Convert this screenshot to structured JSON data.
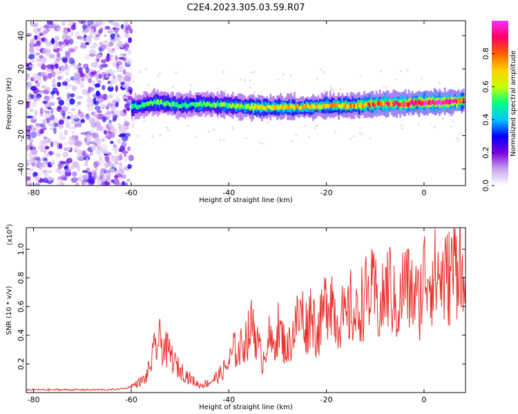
{
  "title": "C2E4.2023.305.03.59.R07",
  "chart_data": [
    {
      "type": "heatmap",
      "xlabel": "Height of straight line (km)",
      "ylabel": "Frequency (Hz)",
      "xlim": [
        -81.5,
        8.5
      ],
      "ylim": [
        -50,
        49
      ],
      "x_ticks": [
        -80,
        -60,
        -40,
        -20,
        0
      ],
      "y_ticks": [
        -40,
        -20,
        0,
        20,
        40
      ],
      "colorbar": {
        "label": "Normalized spectral amplitude",
        "range": [
          0,
          1
        ],
        "ticks": [
          0.0,
          0.2,
          0.4,
          0.6,
          0.8
        ],
        "colormap": [
          "#ffffff",
          "#c9a6ef",
          "#7a00e0",
          "#0000ff",
          "#00c8ff",
          "#00ff80",
          "#c8ff00",
          "#ffd000",
          "#ff6000",
          "#ff0060",
          "#ff30ff"
        ]
      },
      "noise_region_x": [
        -81.5,
        -60
      ],
      "signal_ridge": {
        "x": [
          -60,
          -55,
          -50,
          -45,
          -40,
          -35,
          -30,
          -25,
          -20,
          -15,
          -10,
          -5,
          0,
          5,
          8
        ],
        "frequency": [
          -3,
          0,
          -2,
          -1,
          -2,
          -3,
          -3,
          -3,
          -2,
          -2,
          -1,
          -1,
          0,
          0,
          1
        ],
        "peak_amplitude": [
          0.35,
          0.45,
          0.4,
          0.42,
          0.45,
          0.55,
          0.6,
          0.6,
          0.6,
          0.65,
          0.75,
          0.8,
          0.9,
          0.95,
          0.7
        ]
      }
    },
    {
      "type": "line",
      "xlabel": "Height of straight line (km)",
      "ylabel": "SNR (10 * v/v)",
      "y_scale_label": "(x10",
      "y_scale_exp": "4",
      "xlim": [
        -81.5,
        8.5
      ],
      "ylim": [
        0,
        1.15
      ],
      "x_ticks": [
        -80,
        -60,
        -40,
        -20,
        0
      ],
      "y_ticks": [
        0.2,
        0.4,
        0.6,
        0.8,
        1.0
      ],
      "color": "#e8302a",
      "series": [
        {
          "x": [
            -81.5,
            -75,
            -70,
            -64,
            -61,
            -59,
            -57,
            -56,
            -55,
            -54,
            -53,
            -52,
            -51,
            -50,
            -48,
            -46,
            -44,
            -42,
            -40,
            -39,
            -38,
            -37,
            -36,
            -35,
            -34,
            -33,
            -32,
            -31,
            -30,
            -28,
            -26,
            -25,
            -24,
            -23,
            -22,
            -21,
            -20,
            -19,
            -18,
            -17,
            -16,
            -15,
            -14,
            -13,
            -12,
            -11,
            -10,
            -9,
            -8,
            -7,
            -6,
            -5,
            -4,
            -3,
            -2,
            -1,
            0,
            1,
            2,
            3,
            4,
            5,
            6,
            7,
            7.5,
            8,
            8.5
          ],
          "y": [
            0.02,
            0.02,
            0.02,
            0.02,
            0.03,
            0.06,
            0.1,
            0.2,
            0.32,
            0.36,
            0.3,
            0.27,
            0.2,
            0.16,
            0.1,
            0.05,
            0.07,
            0.12,
            0.2,
            0.3,
            0.28,
            0.35,
            0.4,
            0.5,
            0.32,
            0.22,
            0.4,
            0.3,
            0.45,
            0.3,
            0.5,
            0.55,
            0.45,
            0.6,
            0.4,
            0.5,
            0.65,
            0.7,
            0.5,
            0.55,
            0.48,
            0.6,
            0.5,
            0.62,
            0.66,
            0.7,
            0.68,
            0.55,
            0.7,
            0.75,
            0.6,
            0.6,
            0.8,
            0.7,
            0.68,
            0.62,
            0.82,
            0.85,
            0.8,
            0.82,
            0.78,
            0.8,
            0.88,
            0.92,
            1.1,
            0.6,
            0.8
          ]
        }
      ]
    }
  ]
}
